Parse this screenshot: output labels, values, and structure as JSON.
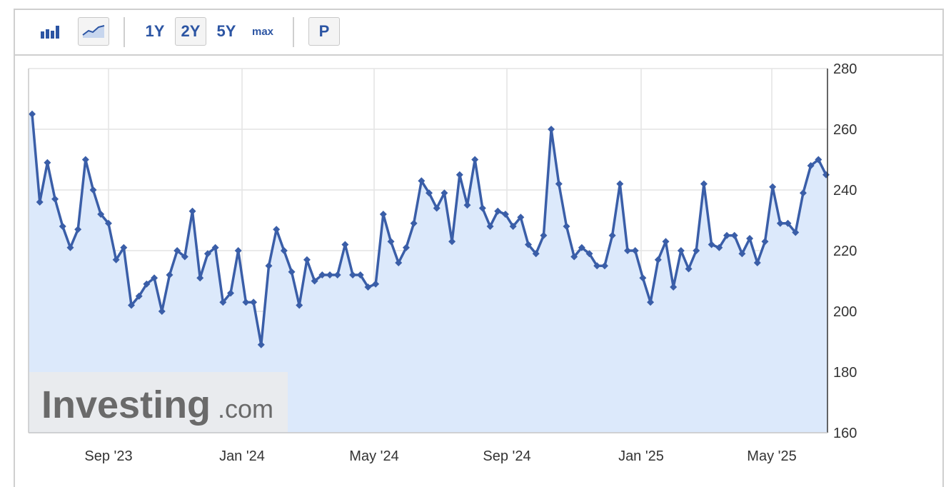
{
  "toolbar": {
    "bar_chart_icon": "bar-chart-icon",
    "line_chart_icon": "line-chart-icon",
    "range_1y": "1Y",
    "range_2y": "2Y",
    "range_5y": "5Y",
    "range_max": "max",
    "period_p": "P"
  },
  "colors": {
    "line": "#3a5ea8",
    "area": "#dce9fb",
    "grid": "#e4e4e4",
    "accent": "#2c55a3"
  },
  "watermark": {
    "brand": "Investing",
    "suffix": ".com"
  },
  "chart_data": {
    "type": "line",
    "title": "",
    "xlabel": "",
    "ylabel": "",
    "ylim": [
      160,
      280
    ],
    "yticks": [
      280,
      260,
      240,
      220,
      200,
      180,
      160
    ],
    "xticks": [
      "Sep '23",
      "Jan '24",
      "May '24",
      "Sep '24",
      "Jan '25",
      "May '25"
    ],
    "y_axis_position": "right",
    "grid": true,
    "values": [
      265,
      236,
      249,
      237,
      228,
      221,
      227,
      250,
      240,
      232,
      229,
      217,
      221,
      202,
      205,
      209,
      211,
      200,
      212,
      220,
      218,
      233,
      211,
      219,
      221,
      203,
      206,
      220,
      203,
      203,
      189,
      215,
      227,
      220,
      213,
      202,
      217,
      210,
      212,
      212,
      212,
      222,
      212,
      212,
      208,
      209,
      232,
      223,
      216,
      221,
      229,
      243,
      239,
      234,
      239,
      223,
      245,
      235,
      250,
      234,
      228,
      233,
      232,
      228,
      231,
      222,
      219,
      225,
      260,
      242,
      228,
      218,
      221,
      219,
      215,
      215,
      225,
      242,
      220,
      220,
      211,
      203,
      217,
      223,
      208,
      220,
      214,
      220,
      242,
      222,
      221,
      225,
      225,
      219,
      224,
      216,
      223,
      241,
      229,
      229,
      226,
      239,
      248,
      250,
      245
    ]
  }
}
